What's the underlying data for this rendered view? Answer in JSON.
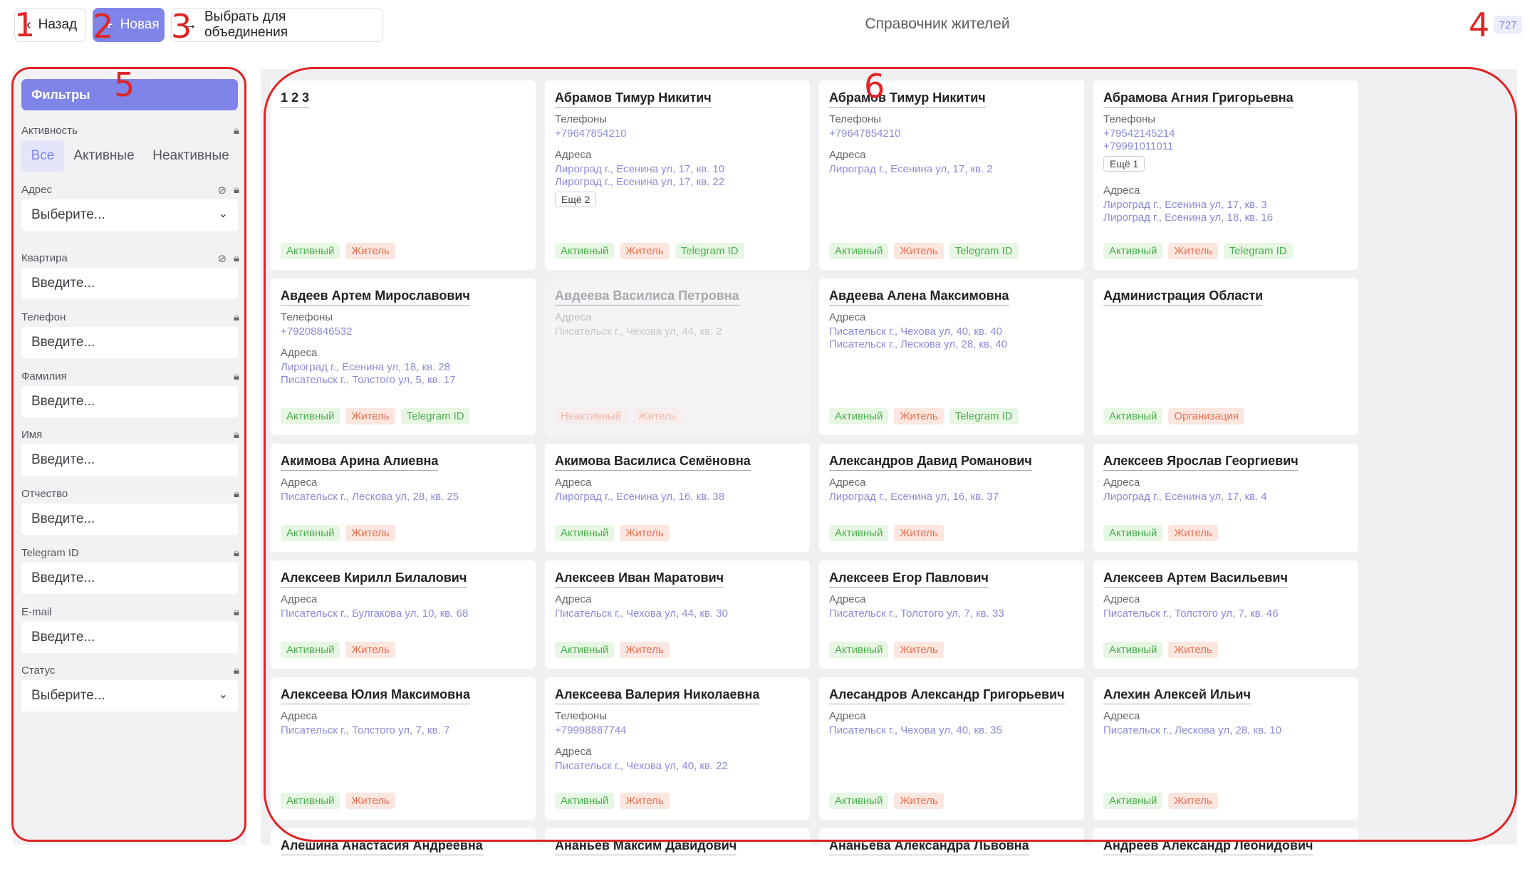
{
  "header": {
    "back_label": "Назад",
    "new_label": "Новая",
    "merge_label": "Выбрать для объединения",
    "title": "Справочник жителей",
    "count": "727"
  },
  "annotations": [
    "1",
    "2",
    "3",
    "4",
    "5",
    "6"
  ],
  "filters": {
    "title": "Фильтры",
    "activity": {
      "label": "Активность",
      "options": [
        "Все",
        "Активные",
        "Неактивные"
      ],
      "selected": "Все"
    },
    "address": {
      "label": "Адрес",
      "placeholder": "Выберите..."
    },
    "apartment": {
      "label": "Квартира",
      "placeholder": "Введите..."
    },
    "phone": {
      "label": "Телефон",
      "placeholder": "Введите..."
    },
    "last_name": {
      "label": "Фамилия",
      "placeholder": "Введите..."
    },
    "first_name": {
      "label": "Имя",
      "placeholder": "Введите..."
    },
    "patronymic": {
      "label": "Отчество",
      "placeholder": "Введите..."
    },
    "telegram": {
      "label": "Telegram ID",
      "placeholder": "Введите..."
    },
    "email": {
      "label": "E-mail",
      "placeholder": "Введите..."
    },
    "status": {
      "label": "Статус",
      "placeholder": "Выберите..."
    }
  },
  "labels": {
    "phones": "Телефоны",
    "addresses": "Адреса",
    "tag_active": "Активный",
    "tag_inactive": "Неактивный",
    "tag_resident": "Житель",
    "tag_org": "Организация",
    "tag_telegram": "Telegram ID"
  },
  "cards": [
    {
      "name": "1 2 3",
      "phones": [],
      "addresses": [],
      "more": "",
      "tags": [
        "active",
        "resident"
      ]
    },
    {
      "name": "Абрамов Тимур Никитич",
      "phones": [
        "+79647854210"
      ],
      "addresses": [
        "Лироград г., Есенина ул, 17, кв. 10",
        "Лироград г., Есенина ул, 17, кв. 22"
      ],
      "more": "Ещё 2",
      "tags": [
        "active",
        "resident",
        "telegram"
      ]
    },
    {
      "name": "Абрамов Тимур Никитич",
      "phones": [
        "+79647854210"
      ],
      "addresses": [
        "Лироград г., Есенина ул, 17, кв. 2"
      ],
      "more": "",
      "tags": [
        "active",
        "resident",
        "telegram"
      ]
    },
    {
      "name": "Абрамова Агния Григорьевна",
      "phones": [
        "+79542145214",
        "+79991011011"
      ],
      "phones_more": "Ещё 1",
      "addresses": [
        "Лироград г., Есенина ул, 17, кв. 3",
        "Лироград г., Есенина ул, 18, кв. 16"
      ],
      "more": "",
      "tags": [
        "active",
        "resident",
        "telegram"
      ]
    },
    {
      "name": "Авдеев Артем Мирославович",
      "phones": [
        "+79208846532"
      ],
      "addresses": [
        "Лироград г., Есенина ул, 18, кв. 28",
        "Писательск г., Толстого ул, 5, кв. 17"
      ],
      "more": "",
      "tags": [
        "active",
        "resident",
        "telegram"
      ]
    },
    {
      "name": "Авдеева Василиса Петровна",
      "inactive": true,
      "phones": [],
      "addresses": [
        "Писательск г., Чехова ул, 44, кв. 2"
      ],
      "more": "",
      "tags": [
        "inactive",
        "resident"
      ]
    },
    {
      "name": "Авдеева Алена Максимовна",
      "phones": [],
      "addresses": [
        "Писательск г., Чехова ул, 40, кв. 40",
        "Писательск г., Лескова ул, 28, кв. 40"
      ],
      "more": "",
      "tags": [
        "active",
        "resident",
        "telegram"
      ]
    },
    {
      "name": "Администрация Области",
      "phones": [],
      "addresses": [],
      "more": "",
      "tags": [
        "active",
        "org"
      ]
    },
    {
      "name": "Акимова Арина Алиевна",
      "phones": [],
      "addresses": [
        "Писательск г., Лескова ул, 28, кв. 25"
      ],
      "more": "",
      "tags": [
        "active",
        "resident"
      ]
    },
    {
      "name": "Акимова Василиса Семёновна",
      "phones": [],
      "addresses": [
        "Лироград г., Есенина ул, 16, кв. 38"
      ],
      "more": "",
      "tags": [
        "active",
        "resident"
      ]
    },
    {
      "name": "Александров Давид Романович",
      "phones": [],
      "addresses": [
        "Лироград г., Есенина ул, 16, кв. 37"
      ],
      "more": "",
      "tags": [
        "active",
        "resident"
      ]
    },
    {
      "name": "Алексеев Ярослав Георгиевич",
      "phones": [],
      "addresses": [
        "Лироград г., Есенина ул, 17, кв. 4"
      ],
      "more": "",
      "tags": [
        "active",
        "resident"
      ]
    },
    {
      "name": "Алексеев Кирилл Билалович",
      "phones": [],
      "addresses": [
        "Писательск г., Булгакова ул, 10, кв. 68"
      ],
      "more": "",
      "tags": [
        "active",
        "resident"
      ]
    },
    {
      "name": "Алексеев Иван Маратович",
      "phones": [],
      "addresses": [
        "Писательск г., Чехова ул, 44, кв. 30"
      ],
      "more": "",
      "tags": [
        "active",
        "resident"
      ]
    },
    {
      "name": "Алексеев Егор Павлович",
      "phones": [],
      "addresses": [
        "Писательск г., Толстого ул, 7, кв. 33"
      ],
      "more": "",
      "tags": [
        "active",
        "resident"
      ]
    },
    {
      "name": "Алексеев Артем Васильевич",
      "phones": [],
      "addresses": [
        "Писательск г., Толстого ул, 7, кв. 46"
      ],
      "more": "",
      "tags": [
        "active",
        "resident"
      ]
    },
    {
      "name": "Алексеева Юлия Максимовна",
      "phones": [],
      "addresses": [
        "Писательск г., Толстого ул, 7, кв. 7"
      ],
      "more": "",
      "tags": [
        "active",
        "resident"
      ]
    },
    {
      "name": "Алексеева Валерия Николаевна",
      "phones": [
        "+79998887744"
      ],
      "addresses": [
        "Писательск г., Чехова ул, 40, кв. 22"
      ],
      "more": "",
      "tags": [
        "active",
        "resident"
      ]
    },
    {
      "name": "Алесандров Александр Григорьевич",
      "phones": [],
      "addresses": [
        "Писательск г., Чехова ул, 40, кв. 35"
      ],
      "more": "",
      "tags": [
        "active",
        "resident"
      ]
    },
    {
      "name": "Алехин Алексей Ильич",
      "phones": [],
      "addresses": [
        "Писательск г., Лескова ул, 28, кв. 10"
      ],
      "more": "",
      "tags": [
        "active",
        "resident"
      ]
    },
    {
      "name": "Алешина Анастасия Андреевна",
      "phones": [],
      "addresses": [],
      "more": "",
      "tags": []
    },
    {
      "name": "Ананьев Максим Давидович",
      "phones": [],
      "addresses": [],
      "more": "",
      "tags": []
    },
    {
      "name": "Ананьева Александра Львовна",
      "phones": [],
      "addresses": [],
      "more": "",
      "tags": []
    },
    {
      "name": "Андреев Александр Леонидович",
      "phones": [],
      "addresses": [],
      "more": "",
      "tags": []
    }
  ]
}
